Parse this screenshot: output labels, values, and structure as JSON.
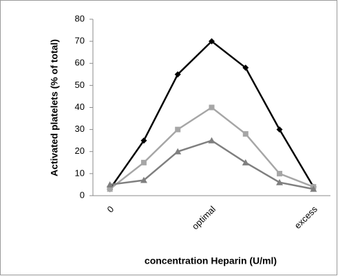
{
  "chart_data": {
    "type": "line",
    "y_label": "Activated platelets (% of total)",
    "x_label": "concentration Heparin (U/ml)",
    "categories": [
      "0",
      null,
      null,
      "optimal",
      null,
      null,
      "excess"
    ],
    "series": [
      {
        "color": "#000000",
        "marker": "diamond",
        "values": [
          3,
          25,
          55,
          70,
          58,
          30,
          4
        ]
      },
      {
        "color": "#a6a6a6",
        "marker": "square",
        "values": [
          3,
          15,
          30,
          40,
          28,
          10,
          4
        ]
      },
      {
        "color": "#7f7f7f",
        "marker": "triangle",
        "values": [
          5,
          7,
          20,
          25,
          15,
          6,
          3
        ]
      }
    ],
    "ylim": [
      0,
      80
    ],
    "yticks": [
      0,
      10,
      20,
      30,
      40,
      50,
      60,
      70,
      80
    ],
    "grid": false
  }
}
